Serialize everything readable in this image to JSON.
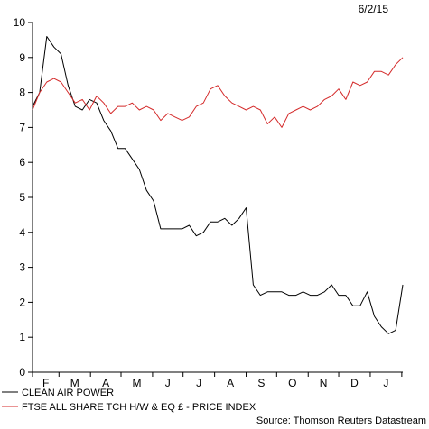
{
  "chart_data": {
    "type": "line",
    "date": "6/2/15",
    "source": "Source: Thomson Reuters Datastream",
    "grid": false,
    "legend_placement": "bottom-left",
    "ylim": [
      0,
      10
    ],
    "yticks": [
      "0",
      "1",
      "2",
      "3",
      "4",
      "5",
      "6",
      "7",
      "8",
      "9",
      "10"
    ],
    "xticks": [
      "F",
      "M",
      "A",
      "M",
      "J",
      "J",
      "A",
      "S",
      "O",
      "N",
      "D",
      "J"
    ],
    "x": [
      "2014-02-03",
      "2014-02-10",
      "2014-02-17",
      "2014-02-24",
      "2014-03-03",
      "2014-03-10",
      "2014-03-17",
      "2014-03-24",
      "2014-03-31",
      "2014-04-07",
      "2014-04-14",
      "2014-04-21",
      "2014-04-28",
      "2014-05-05",
      "2014-05-12",
      "2014-05-19",
      "2014-05-26",
      "2014-06-02",
      "2014-06-09",
      "2014-06-16",
      "2014-06-23",
      "2014-06-30",
      "2014-07-07",
      "2014-07-14",
      "2014-07-21",
      "2014-07-28",
      "2014-08-04",
      "2014-08-11",
      "2014-08-18",
      "2014-08-25",
      "2014-09-01",
      "2014-09-08",
      "2014-09-15",
      "2014-09-22",
      "2014-09-29",
      "2014-10-06",
      "2014-10-13",
      "2014-10-20",
      "2014-10-27",
      "2014-11-03",
      "2014-11-10",
      "2014-11-17",
      "2014-11-24",
      "2014-12-01",
      "2014-12-08",
      "2014-12-15",
      "2014-12-22",
      "2014-12-29",
      "2015-01-05",
      "2015-01-12",
      "2015-01-19",
      "2015-01-26",
      "2015-02-02"
    ],
    "series": [
      {
        "name": "CLEAN AIR POWER",
        "color": "#000000",
        "values": [
          7.6,
          8.0,
          9.6,
          9.3,
          9.1,
          8.2,
          7.6,
          7.5,
          7.8,
          7.7,
          7.2,
          6.9,
          6.4,
          6.4,
          6.1,
          5.8,
          5.2,
          4.9,
          4.1,
          4.1,
          4.1,
          4.1,
          4.2,
          3.9,
          4.0,
          4.3,
          4.3,
          4.4,
          4.2,
          4.4,
          4.7,
          2.5,
          2.2,
          2.3,
          2.3,
          2.3,
          2.2,
          2.2,
          2.3,
          2.2,
          2.2,
          2.3,
          2.5,
          2.2,
          2.2,
          1.9,
          1.9,
          2.3,
          1.6,
          1.3,
          1.1,
          1.2,
          2.5
        ]
      },
      {
        "name": "FTSE ALL SHARE TCH H/W & EQ £ - PRICE INDEX",
        "color": "#d42a2a",
        "values": [
          7.5,
          8.0,
          8.3,
          8.4,
          8.3,
          8.0,
          7.7,
          7.8,
          7.5,
          7.9,
          7.7,
          7.4,
          7.6,
          7.6,
          7.7,
          7.5,
          7.6,
          7.5,
          7.2,
          7.4,
          7.3,
          7.2,
          7.3,
          7.6,
          7.7,
          8.1,
          8.2,
          7.9,
          7.7,
          7.6,
          7.5,
          7.6,
          7.5,
          7.1,
          7.3,
          7.0,
          7.4,
          7.5,
          7.6,
          7.5,
          7.6,
          7.8,
          7.9,
          8.1,
          7.8,
          8.3,
          8.2,
          8.3,
          8.6,
          8.6,
          8.5,
          8.8,
          9.0
        ]
      }
    ]
  }
}
